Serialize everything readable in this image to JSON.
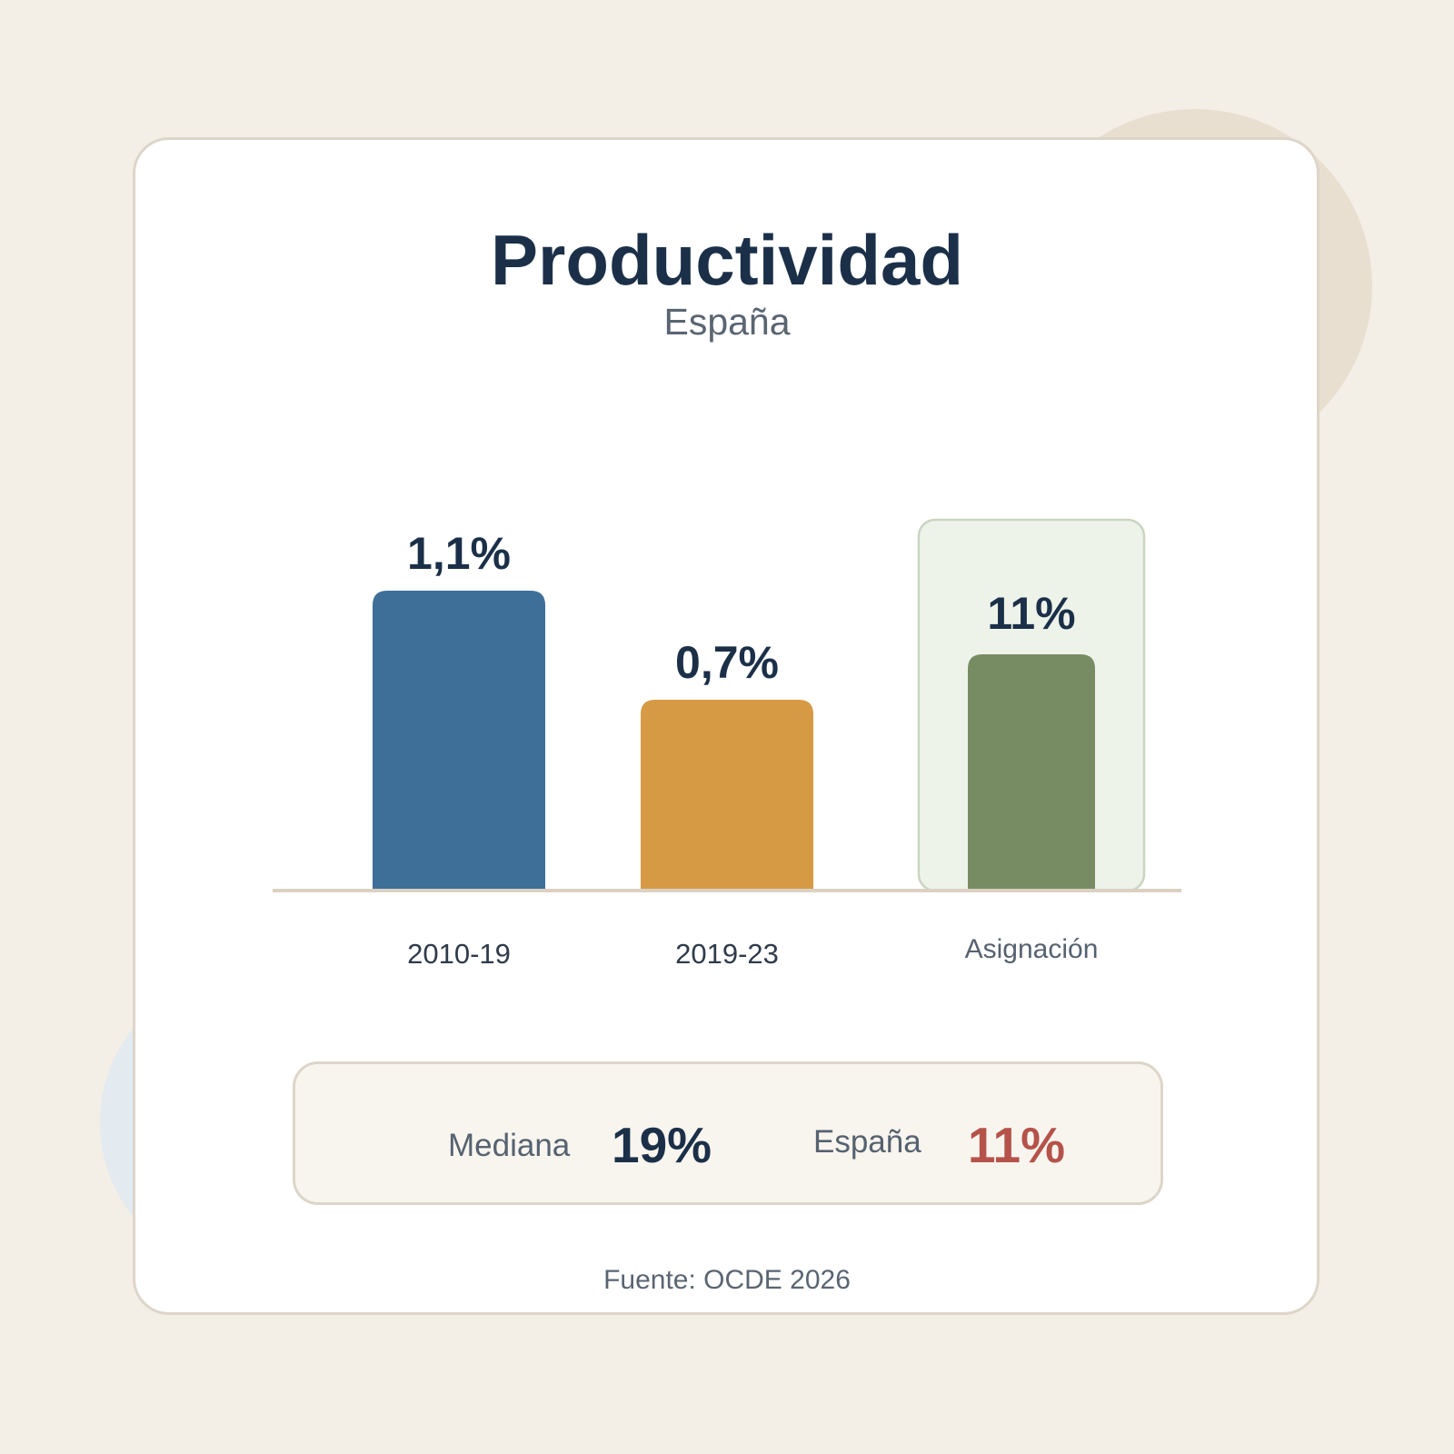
{
  "header": {
    "title": "Productividad",
    "subtitle": "España"
  },
  "chart_data": {
    "type": "bar",
    "title": "Productividad",
    "subtitle": "España",
    "categories": [
      "2010-19",
      "2019-23",
      "Asignación"
    ],
    "values": [
      1.1,
      0.7,
      11
    ],
    "value_labels": [
      "1,1%",
      "0,7%",
      "11%"
    ],
    "colors": [
      "#3E6F99",
      "#D69A45",
      "#788C64"
    ],
    "highlighted_category": "Asignación",
    "highlight_fill": "#EEF3EA",
    "grid": false,
    "legend": "none"
  },
  "summary": {
    "median_label": "Mediana",
    "median_value": "19%",
    "spain_label": "España",
    "spain_value": "11%",
    "median_color": "#1B3048",
    "spain_color": "#B5534A"
  },
  "footer": {
    "source": "Fuente: OCDE 2026"
  }
}
